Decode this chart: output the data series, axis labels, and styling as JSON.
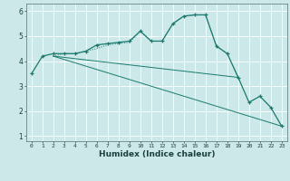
{
  "xlabel": "Humidex (Indice chaleur)",
  "bg_color": "#cce8e8",
  "grid_color": "#ffffff",
  "line_color": "#1a7a6e",
  "xlim": [
    -0.5,
    23.5
  ],
  "ylim": [
    0.8,
    6.3
  ],
  "xticks": [
    0,
    1,
    2,
    3,
    4,
    5,
    6,
    7,
    8,
    9,
    10,
    11,
    12,
    13,
    14,
    15,
    16,
    17,
    18,
    19,
    20,
    21,
    22,
    23
  ],
  "yticks": [
    1,
    2,
    3,
    4,
    5,
    6
  ],
  "series1_x": [
    0,
    1,
    2,
    3,
    4,
    5,
    6,
    7,
    8,
    9,
    10,
    11,
    12,
    13,
    14,
    15,
    16,
    17,
    18,
    19,
    20,
    21,
    22,
    23
  ],
  "series1_y": [
    3.5,
    4.2,
    4.3,
    4.3,
    4.3,
    4.4,
    4.65,
    4.7,
    4.75,
    4.8,
    5.2,
    4.8,
    4.8,
    5.5,
    5.8,
    5.85,
    5.85,
    4.6,
    4.3,
    3.35,
    2.35,
    2.6,
    2.15,
    1.4
  ],
  "series2_x": [
    2,
    3,
    4,
    5,
    6,
    7,
    8,
    9,
    10,
    11,
    12,
    13,
    14,
    15,
    16,
    17,
    18,
    19
  ],
  "series2_y": [
    4.2,
    4.3,
    4.3,
    4.4,
    4.5,
    4.65,
    4.7,
    4.75,
    5.2,
    4.8,
    4.8,
    5.5,
    5.8,
    5.85,
    5.85,
    4.6,
    4.3,
    3.35
  ],
  "series3_x": [
    2,
    19
  ],
  "series3_y": [
    4.2,
    3.35
  ],
  "series4_x": [
    2,
    23
  ],
  "series4_y": [
    4.2,
    1.4
  ],
  "xtick_fontsize": 4.5,
  "ytick_fontsize": 5.5,
  "xlabel_fontsize": 6.5
}
